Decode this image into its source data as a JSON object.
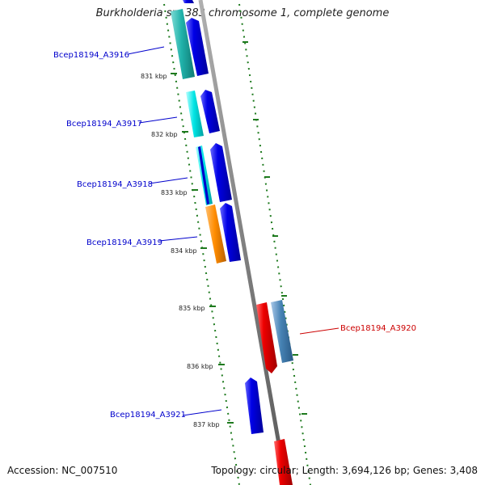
{
  "title": "Burkholderia sp. 383 chromosome 1, complete genome",
  "footer": {
    "accession": "Accession: NC_007510",
    "summary": "Topology: circular; Length: 3,694,126 bp; Genes: 3,408"
  },
  "ticks": [
    {
      "label": "831 kbp"
    },
    {
      "label": "832 kbp"
    },
    {
      "label": "833 kbp"
    },
    {
      "label": "834 kbp"
    },
    {
      "label": "835 kbp"
    },
    {
      "label": "836 kbp"
    },
    {
      "label": "837 kbp"
    }
  ],
  "gene_labels": [
    {
      "text": "Bcep18194_A3916",
      "color": "#0000cc"
    },
    {
      "text": "Bcep18194_A3917",
      "color": "#0000cc"
    },
    {
      "text": "Bcep18194_A3918",
      "color": "#0000cc"
    },
    {
      "text": "Bcep18194_A3919",
      "color": "#0000cc"
    },
    {
      "text": "Bcep18194_A3920",
      "color": "#cc0000"
    },
    {
      "text": "Bcep18194_A3921",
      "color": "#0000cc"
    }
  ],
  "colors": {
    "backbone": "#808080",
    "tick_green": "#1e7a1e",
    "forward_gene": "#0000e6",
    "reverse_gene": "#ee0000",
    "cyan_feature": "#00e5e5",
    "teal_feature": "#20b2aa",
    "orange_feature": "#ff8c00",
    "steel_feature": "#4682b4"
  }
}
